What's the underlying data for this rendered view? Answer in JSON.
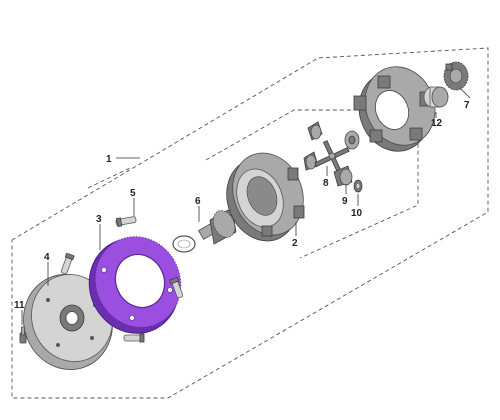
{
  "diagram": {
    "colors": {
      "ring_gear": "#9a4fe0",
      "ring_gear_dark": "#6a2fb0",
      "metal_dark": "#7a7a7a",
      "metal_mid": "#a9a9a9",
      "metal_light": "#d4d4d4"
    },
    "callouts": [
      {
        "id": "c1",
        "label": "1"
      },
      {
        "id": "c2",
        "label": "2"
      },
      {
        "id": "c3",
        "label": "3"
      },
      {
        "id": "c4",
        "label": "4"
      },
      {
        "id": "c5",
        "label": "5"
      },
      {
        "id": "c6",
        "label": "6"
      },
      {
        "id": "c7",
        "label": "7"
      },
      {
        "id": "c8",
        "label": "8"
      },
      {
        "id": "c9",
        "label": "9"
      },
      {
        "id": "c10",
        "label": "10"
      },
      {
        "id": "c11",
        "label": "11"
      },
      {
        "id": "c12",
        "label": "12"
      }
    ]
  }
}
